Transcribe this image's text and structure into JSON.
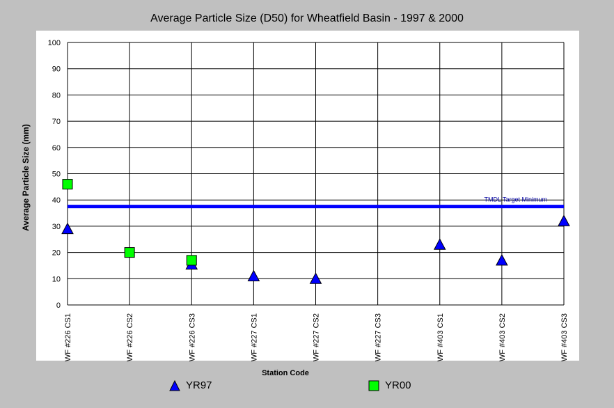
{
  "chart_data": {
    "type": "scatter",
    "title": "Average Particle Size (D50) for Wheatfield Basin - 1997 & 2000",
    "xlabel": "Station Code",
    "ylabel": "Average Particle Size (mm)",
    "ylim": [
      0,
      100
    ],
    "yticks": [
      "0",
      "10",
      "20",
      "30",
      "40",
      "50",
      "60",
      "70",
      "80",
      "90",
      "100"
    ],
    "grid": true,
    "legend_position": "bottom",
    "categories": [
      "WF #226 CS1",
      "WF #226 CS2",
      "WF #226 CS3",
      "WF #227 CS1",
      "WF #227 CS2",
      "WF #227 CS3",
      "WF #403 CS1",
      "WF #403 CS2",
      "WF #403 CS3"
    ],
    "series": [
      {
        "name": "YR97",
        "marker": "triangle",
        "color": "#0000ff",
        "values": [
          29,
          null,
          15.5,
          11,
          10,
          null,
          23,
          17,
          32
        ]
      },
      {
        "name": "YR00",
        "marker": "square",
        "color": "#00ff00",
        "values": [
          46,
          20,
          17,
          null,
          null,
          null,
          null,
          null,
          null
        ]
      }
    ],
    "reference_line": {
      "label": "TMDL Target Minimum",
      "value": 37.5,
      "color": "#0000ff"
    }
  }
}
